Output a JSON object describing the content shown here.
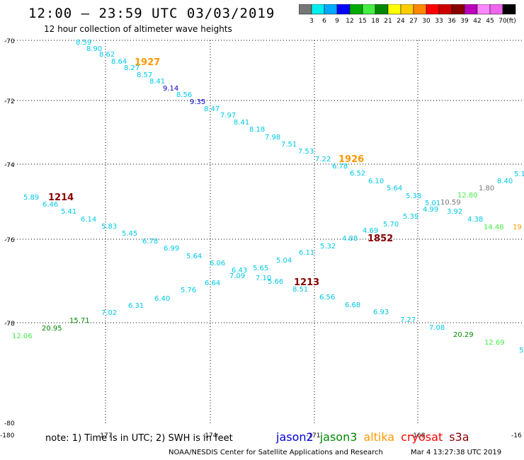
{
  "title": "12:00 – 23:59 UTC 03/03/2019",
  "subtitle": "12 hour collection of altimeter wave heights",
  "colorbar": {
    "colors": [
      "#777777",
      "#00eeee",
      "#00a8ff",
      "#0000ff",
      "#00aa00",
      "#44ee44",
      "#008800",
      "#ffff00",
      "#ffcc00",
      "#ff8800",
      "#ff0000",
      "#cc0000",
      "#880000",
      "#bb00bb",
      "#ff88ff",
      "#ee66ee",
      "#000000"
    ],
    "labels": [
      "3",
      "6",
      "9",
      "12",
      "15",
      "18",
      "21",
      "24",
      "27",
      "30",
      "33",
      "36",
      "39",
      "42",
      "45",
      "70",
      "(ft)"
    ]
  },
  "axes": {
    "lat_labels": [
      "-70",
      "-72",
      "-74",
      "-76",
      "-78",
      "-80"
    ],
    "lon_labels": [
      "-180",
      "-177",
      "-174",
      "-171",
      "-168",
      "-16"
    ]
  },
  "tracks": [
    {
      "label": "1927",
      "color": "#ff9900",
      "points": [
        {
          "v": "8.59",
          "c": "#00c8e6"
        },
        {
          "v": "8.90",
          "c": "#00c8e6"
        },
        {
          "v": "8.62",
          "c": "#00c8e6"
        },
        {
          "v": "8.64",
          "c": "#00c8e6"
        },
        {
          "v": "8.27",
          "c": "#00c8e6"
        },
        {
          "v": "8.57",
          "c": "#00c8e6"
        },
        {
          "v": "8.41",
          "c": "#00c8e6"
        },
        {
          "v": "9.14",
          "c": "#0000cc"
        },
        {
          "v": "8.56",
          "c": "#00c8e6"
        },
        {
          "v": "9.35",
          "c": "#0000cc"
        },
        {
          "v": "8.47",
          "c": "#00c8e6"
        },
        {
          "v": "7.97",
          "c": "#00c8e6"
        },
        {
          "v": "8.41",
          "c": "#00c8e6"
        },
        {
          "v": "8.18",
          "c": "#00c8e6"
        },
        {
          "v": "7.98",
          "c": "#00c8e6"
        },
        {
          "v": "7.51",
          "c": "#00c8e6"
        },
        {
          "v": "7.53",
          "c": "#00c8e6"
        },
        {
          "v": "7.22",
          "c": "#00c8e6"
        }
      ]
    },
    {
      "label": "1926",
      "color": "#ff9900",
      "points": [
        {
          "v": "6.78",
          "c": "#00c8e6"
        },
        {
          "v": "6.52",
          "c": "#00c8e6"
        },
        {
          "v": "6.10",
          "c": "#00c8e6"
        },
        {
          "v": "5.64",
          "c": "#00c8e6"
        },
        {
          "v": "5.38",
          "c": "#00c8e6"
        },
        {
          "v": "5.01",
          "c": "#00c8e6"
        },
        {
          "v": "4.99",
          "c": "#00c8e6"
        },
        {
          "v": "3.92",
          "c": "#00c8e6"
        },
        {
          "v": "4.38",
          "c": "#00c8e6"
        },
        {
          "v": "14.48",
          "c": "#44ee44"
        },
        {
          "v": "19",
          "c": "#ff9900"
        }
      ]
    },
    {
      "label": "1852",
      "color": "#880000",
      "points": [
        {
          "v": "4.88",
          "c": "#00c8e6"
        },
        {
          "v": "4.69",
          "c": "#00c8e6"
        },
        {
          "v": "5.70",
          "c": "#00c8e6"
        },
        {
          "v": "5.39",
          "c": "#00c8e6"
        },
        {
          "v": "10.59",
          "c": "#777777"
        },
        {
          "v": "12.80",
          "c": "#44ee44"
        },
        {
          "v": "1.80",
          "c": "#777777"
        },
        {
          "v": "8.40",
          "c": "#00c8e6"
        },
        {
          "v": "5.1",
          "c": "#00c8e6"
        }
      ]
    },
    {
      "label": "1214",
      "color": "#880000",
      "points": [
        {
          "v": "5.89",
          "c": "#00c8e6"
        },
        {
          "v": "6.46",
          "c": "#00c8e6"
        },
        {
          "v": "5.41",
          "c": "#00c8e6"
        },
        {
          "v": "6.14",
          "c": "#00c8e6"
        },
        {
          "v": "5.83",
          "c": "#00c8e6"
        },
        {
          "v": "5.45",
          "c": "#00c8e6"
        },
        {
          "v": "6.78",
          "c": "#00c8e6"
        },
        {
          "v": "6.99",
          "c": "#00c8e6"
        },
        {
          "v": "5.64",
          "c": "#00c8e6"
        },
        {
          "v": "6.06",
          "c": "#00c8e6"
        },
        {
          "v": "6.43",
          "c": "#00c8e6"
        },
        {
          "v": "7.09",
          "c": "#00c8e6"
        },
        {
          "v": "7.10",
          "c": "#00c8e6"
        },
        {
          "v": "5.66",
          "c": "#00c8e6"
        }
      ]
    },
    {
      "label": "1213",
      "color": "#880000",
      "points": [
        {
          "v": "12.06",
          "c": "#44ee44"
        },
        {
          "v": "20.95",
          "c": "#008800"
        },
        {
          "v": "15.71",
          "c": "#008800"
        },
        {
          "v": "7.02",
          "c": "#00c8e6"
        },
        {
          "v": "6.31",
          "c": "#00c8e6"
        },
        {
          "v": "6.40",
          "c": "#00c8e6"
        },
        {
          "v": "5.76",
          "c": "#00c8e6"
        },
        {
          "v": "6.64",
          "c": "#00c8e6"
        },
        {
          "v": "5.65",
          "c": "#00c8e6"
        },
        {
          "v": "5.04",
          "c": "#00c8e6"
        },
        {
          "v": "6.11",
          "c": "#00c8e6"
        },
        {
          "v": "5.32",
          "c": "#00c8e6"
        },
        {
          "v": "8.51",
          "c": "#00c8e6"
        },
        {
          "v": "6.56",
          "c": "#00c8e6"
        },
        {
          "v": "6.68",
          "c": "#00c8e6"
        },
        {
          "v": "6.93",
          "c": "#00c8e6"
        },
        {
          "v": "7.27",
          "c": "#00c8e6"
        },
        {
          "v": "7.08",
          "c": "#00c8e6"
        },
        {
          "v": "20.29",
          "c": "#008800"
        },
        {
          "v": "12.69",
          "c": "#44ee44"
        },
        {
          "v": "5",
          "c": "#00c8e6"
        }
      ]
    }
  ],
  "note": "note: 1) Time is in UTC; 2) SWH is in feet",
  "legend": [
    {
      "name": "jason2",
      "color": "#0000dd"
    },
    {
      "name": "jason3",
      "color": "#008800"
    },
    {
      "name": "altika",
      "color": "#ff9900"
    },
    {
      "name": "cryosat",
      "color": "#ff0000"
    },
    {
      "name": "s3a",
      "color": "#880000"
    }
  ],
  "credit": "NOAA/NESDIS Center for Satellite Applications and Research",
  "timestamp": "Mar  4 13:27:38 UTC 2019"
}
